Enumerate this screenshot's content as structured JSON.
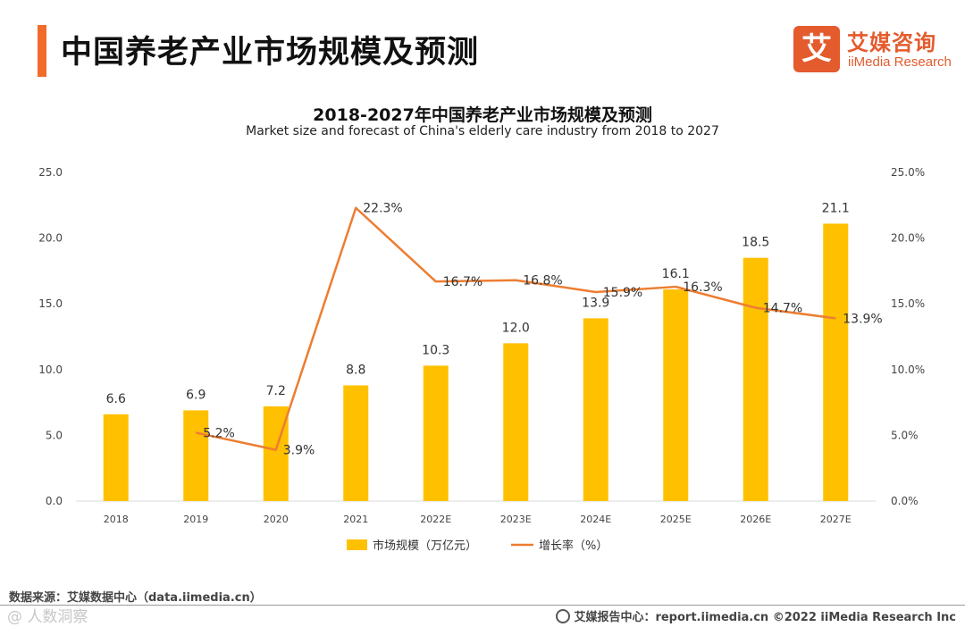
{
  "header": {
    "title": "中国养老产业市场规模及预测",
    "brand_cn": "艾媒咨询",
    "brand_en": "iiMedia Research",
    "brand_mark": "艾"
  },
  "chart_data": {
    "type": "bar",
    "title": "2018-2027年中国养老产业市场规模及预测",
    "subtitle": "Market size and forecast of China's elderly care industry from 2018 to 2027",
    "categories": [
      "2018",
      "2019",
      "2020",
      "2021",
      "2022E",
      "2023E",
      "2024E",
      "2025E",
      "2026E",
      "2027E"
    ],
    "series": [
      {
        "name": "市场规模（万亿元）",
        "type": "bar",
        "axis": "left",
        "values": [
          6.6,
          6.9,
          7.2,
          8.8,
          10.3,
          12.0,
          13.9,
          16.1,
          18.5,
          21.1
        ],
        "labels": [
          "6.6",
          "6.9",
          "7.2",
          "8.8",
          "10.3",
          "12.0",
          "13.9",
          "16.1",
          "18.5",
          "21.1"
        ],
        "color": "#FFC000"
      },
      {
        "name": "增长率（%）",
        "type": "line",
        "axis": "right",
        "values": [
          null,
          5.2,
          3.9,
          22.3,
          16.7,
          16.8,
          15.9,
          16.3,
          14.7,
          13.9
        ],
        "labels": [
          "",
          "5.2%",
          "3.9%",
          "22.3%",
          "16.7%",
          "16.8%",
          "15.9%",
          "16.3%",
          "14.7%",
          "13.9%"
        ],
        "color": "#ED7D31"
      }
    ],
    "y_left": {
      "min": 0,
      "max": 25,
      "ticks": [
        "0.0",
        "5.0",
        "10.0",
        "15.0",
        "20.0",
        "25.0"
      ]
    },
    "y_right": {
      "min": 0,
      "max": 25,
      "ticks": [
        "0.0%",
        "5.0%",
        "10.0%",
        "15.0%",
        "20.0%",
        "25.0%"
      ]
    },
    "grid": false,
    "legend": "bottom-center"
  },
  "footer": {
    "source": "数据来源：艾媒数据中心（data.iimedia.cn）",
    "report": "艾媒报告中心：report.iimedia.cn  ©2022  iiMedia Research  Inc",
    "watermark": "@ 人数洞察"
  }
}
